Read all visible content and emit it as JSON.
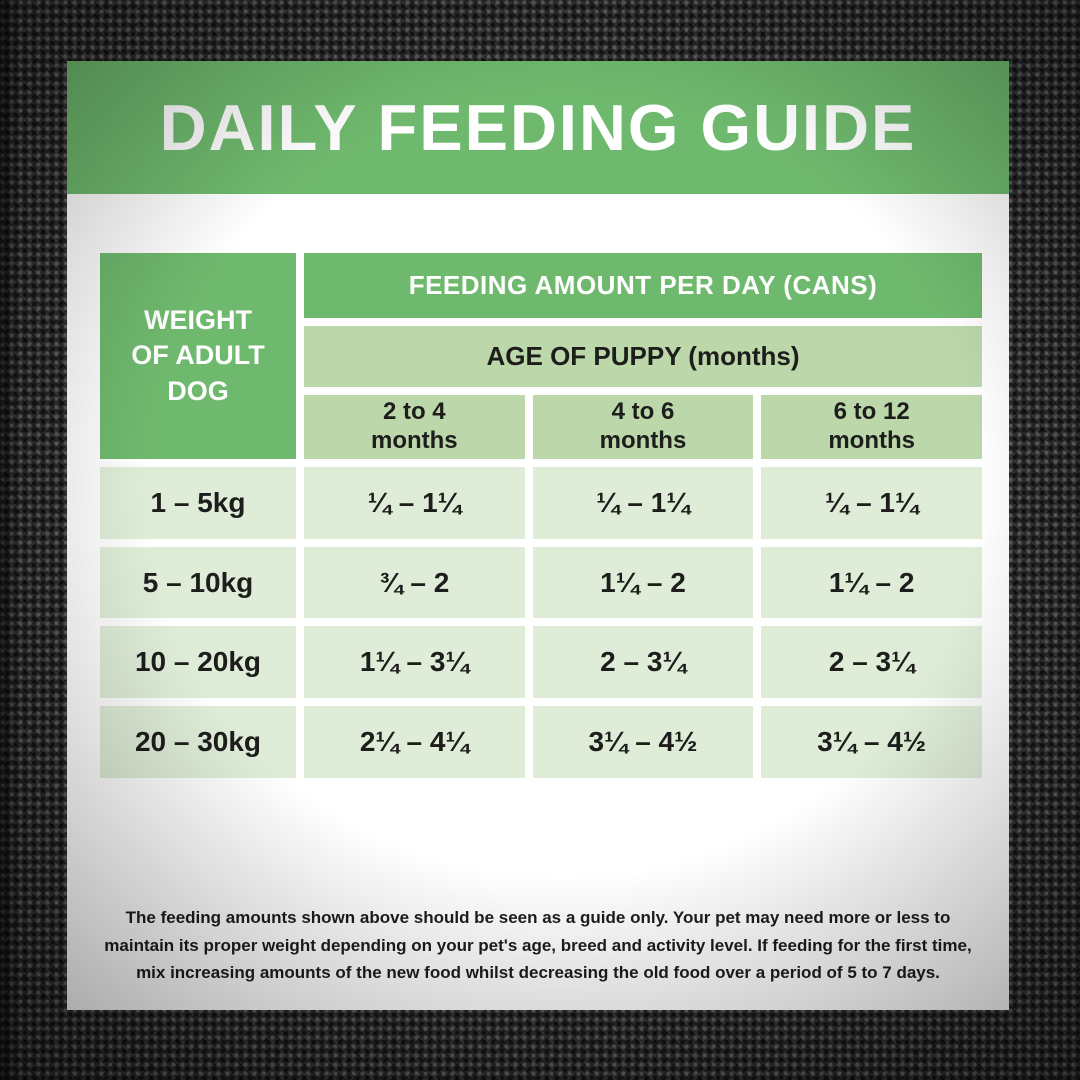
{
  "banner": {
    "title": "DAILY FEEDING GUIDE"
  },
  "table": {
    "corner_header": "WEIGHT\nOF ADULT\nDOG",
    "feeding_amount_header": "FEEDING AMOUNT PER DAY (CANS)",
    "age_header": "AGE OF PUPPY (months)",
    "age_columns": [
      "2 to 4\nmonths",
      "4 to 6\nmonths",
      "6 to 12\nmonths"
    ],
    "rows": [
      {
        "weight": "1 – 5kg",
        "values": [
          "¼ – 1¼",
          "¼ – 1¼",
          "¼ – 1¼"
        ]
      },
      {
        "weight": "5 – 10kg",
        "values": [
          "¾ – 2",
          "1¼ – 2",
          "1¼ – 2"
        ]
      },
      {
        "weight": "10 – 20kg",
        "values": [
          "1¼ – 3¼",
          "2 – 3¼",
          "2 – 3¼"
        ]
      },
      {
        "weight": "20 – 30kg",
        "values": [
          "2¼ – 4¼",
          "3¼ – 4½",
          "3¼ – 4½"
        ]
      }
    ]
  },
  "footer": {
    "note": "The feeding amounts shown above should be seen as a guide only. Your pet may need more or less to maintain its proper weight depending on your pet's age, breed and activity level. If feeding for the first time, mix increasing amounts of the new food whilst decreasing the old food over a period of 5 to 7 days."
  },
  "colors": {
    "banner_green": "#6fb96e",
    "header_light_green": "#bcd8ab",
    "cell_pale_green": "#dfedd8",
    "text_dark": "#1d1d1b",
    "text_white": "#ffffff",
    "card_white": "#ffffff",
    "background_black": "#2c2c2c"
  }
}
